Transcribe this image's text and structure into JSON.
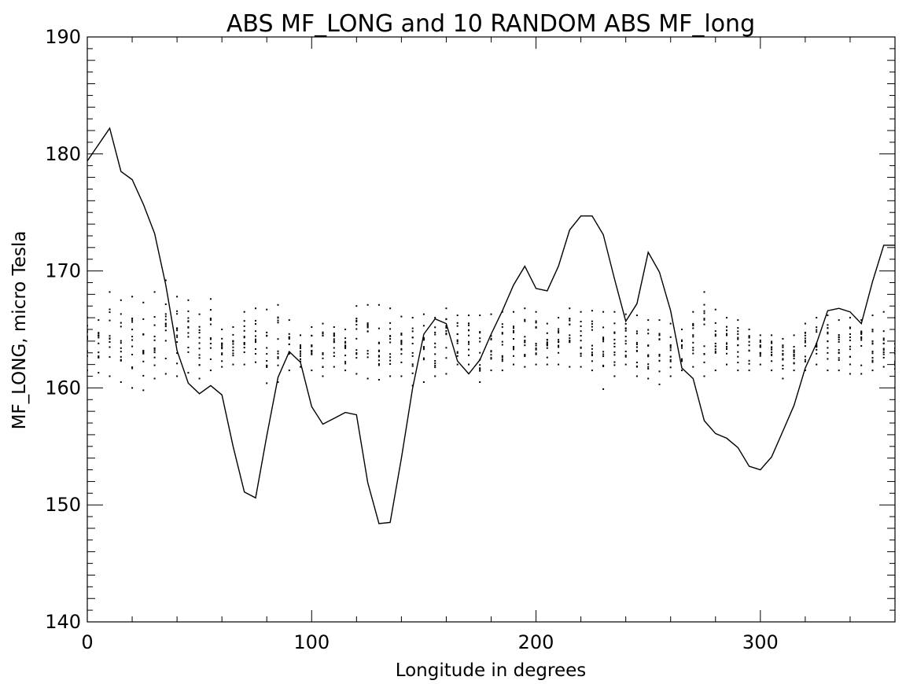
{
  "chart_data": {
    "type": "line",
    "title": "ABS MF_LONG and 10 RANDOM ABS MF_long",
    "xlabel": "Longitude in degrees",
    "ylabel": "MF_LONG, micro Tesla",
    "xlim": [
      0,
      360
    ],
    "ylim": [
      140,
      190
    ],
    "xticks": [
      0,
      100,
      200,
      300
    ],
    "yticks": [
      140,
      150,
      160,
      170,
      180,
      190
    ],
    "grid": false,
    "series": [
      {
        "style": "line",
        "x": [
          0,
          10,
          15,
          20,
          25,
          30,
          35,
          40,
          45,
          50,
          55,
          60,
          65,
          70,
          75,
          80,
          85,
          90,
          95,
          100,
          105,
          110,
          115,
          120,
          125,
          130,
          135,
          140,
          145,
          150,
          155,
          160,
          165,
          170,
          175,
          180,
          185,
          190,
          195,
          200,
          205,
          210,
          215,
          220,
          225,
          230,
          235,
          240,
          245,
          250,
          255,
          260,
          265,
          270,
          275,
          280,
          285,
          290,
          295,
          300,
          305,
          310,
          315,
          320,
          325,
          330,
          335,
          340,
          345,
          350,
          355,
          360
        ],
        "values": [
          179.4,
          182.2,
          178.5,
          177.8,
          175.7,
          173.2,
          168.8,
          163.2,
          160.4,
          159.5,
          160.2,
          159.4,
          155.0,
          151.1,
          150.6,
          155.9,
          160.9,
          163.1,
          162.2,
          158.4,
          156.9,
          157.4,
          157.9,
          157.7,
          151.9,
          148.4,
          148.5,
          154.0,
          160.0,
          164.6,
          165.9,
          165.5,
          162.3,
          161.2,
          162.4,
          164.6,
          166.6,
          168.8,
          170.4,
          168.5,
          168.3,
          170.4,
          173.5,
          174.7,
          174.7,
          173.1,
          169.3,
          165.7,
          167.2,
          171.6,
          169.9,
          166.6,
          161.7,
          160.8,
          157.2,
          156.1,
          155.7,
          154.9,
          153.3,
          153.0,
          154.1,
          156.3,
          158.5,
          161.7,
          163.8,
          166.6,
          166.8,
          166.5,
          165.5,
          169.1,
          172.2,
          172.2
        ]
      },
      {
        "style": "dots",
        "note_x": [
          0,
          5,
          10,
          15,
          20,
          25,
          30,
          35,
          40,
          45,
          50,
          55,
          60,
          65,
          70,
          75,
          80,
          85,
          90,
          95,
          100,
          105,
          110,
          115,
          120,
          125,
          130,
          135,
          140,
          145,
          150,
          155,
          160,
          165,
          170,
          175,
          180,
          185,
          190,
          195,
          200,
          205,
          210,
          215,
          220,
          225,
          230,
          235,
          240,
          245,
          250,
          255,
          260,
          265,
          270,
          275,
          280,
          285,
          290,
          295,
          300,
          305,
          310,
          315,
          320,
          325,
          330,
          335,
          340,
          345,
          350,
          355,
          360
        ],
        "x": [
          0,
          5,
          10,
          15,
          20,
          25,
          30,
          35,
          40,
          45,
          50,
          55,
          60,
          65,
          70,
          75,
          80,
          85,
          90,
          95,
          100,
          105,
          110,
          115,
          120,
          125,
          130,
          135,
          140,
          145,
          150,
          155,
          160,
          165,
          170,
          175,
          180,
          185,
          190,
          195,
          200,
          205,
          210,
          215,
          220,
          225,
          230,
          235,
          240,
          245,
          250,
          255,
          260,
          265,
          270,
          275,
          280,
          285,
          290,
          295,
          300,
          305,
          310,
          315,
          320,
          325,
          330,
          335,
          340,
          345,
          350,
          355,
          360
        ],
        "values_min": [
          161.5,
          161.3,
          161.0,
          160.5,
          160.0,
          159.8,
          160.8,
          161.2,
          161.0,
          161.3,
          160.8,
          161.5,
          161.8,
          162.0,
          162.0,
          162.2,
          160.4,
          160.5,
          161.5,
          161.8,
          161.5,
          161.0,
          161.8,
          161.5,
          161.2,
          160.8,
          160.7,
          161.0,
          161.0,
          160.2,
          160.5,
          161.0,
          161.2,
          162.0,
          162.0,
          160.5,
          161.5,
          161.5,
          162.0,
          161.8,
          162.0,
          162.0,
          162.0,
          161.8,
          161.8,
          161.5,
          159.9,
          161.0,
          162.0,
          161.0,
          160.8,
          160.3,
          161.0,
          161.5,
          161.8,
          161.0,
          161.5,
          162.0,
          161.5,
          161.5,
          162.0,
          161.5,
          160.8,
          161.5,
          161.5,
          162.0,
          161.5,
          161.5,
          161.2,
          161.2,
          161.5,
          161.8,
          160.0
        ],
        "values_max": [
          166.0,
          165.8,
          168.2,
          167.5,
          167.8,
          167.3,
          168.2,
          169.2,
          167.8,
          167.5,
          166.3,
          167.6,
          165.0,
          165.2,
          166.5,
          166.8,
          166.7,
          167.1,
          165.8,
          164.5,
          165.2,
          165.5,
          165.2,
          165.0,
          167.0,
          167.1,
          167.1,
          166.8,
          166.1,
          166.0,
          166.3,
          166.0,
          166.8,
          166.2,
          166.2,
          166.2,
          166.3,
          166.5,
          166.5,
          166.8,
          166.5,
          165.5,
          166.0,
          166.8,
          166.5,
          166.6,
          166.5,
          166.5,
          166.3,
          166.2,
          165.8,
          165.8,
          165.5,
          165.0,
          166.5,
          168.2,
          166.7,
          166.0,
          165.8,
          165.0,
          164.5,
          164.5,
          164.2,
          164.5,
          165.5,
          166.0,
          166.2,
          165.8,
          166.0,
          165.8,
          166.2,
          166.5,
          166.0
        ]
      }
    ]
  }
}
